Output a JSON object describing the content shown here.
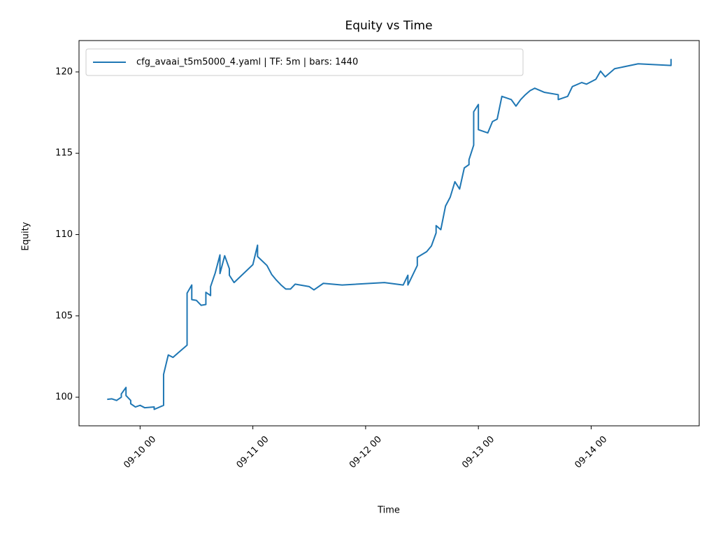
{
  "chart_data": {
    "type": "line",
    "title": "Equity vs Time",
    "xlabel": "Time",
    "ylabel": "Equity",
    "x": [
      "09-09 17",
      "09-09 18",
      "09-09 19",
      "09-09 20",
      "09-09 20",
      "09-09 21",
      "09-09 21",
      "09-09 22",
      "09-09 22",
      "09-09 23",
      "09-10 00",
      "09-10 01",
      "09-10 03",
      "09-10 03",
      "09-10 05",
      "09-10 05",
      "09-10 05",
      "09-10 06",
      "09-10 07",
      "09-10 10",
      "09-10 10",
      "09-10 10",
      "09-10 11",
      "09-10 11",
      "09-10 12",
      "09-10 13",
      "09-10 14",
      "09-10 14",
      "09-10 15",
      "09-10 15",
      "09-10 16",
      "09-10 17",
      "09-10 17",
      "09-10 18",
      "09-10 19",
      "09-10 19",
      "09-10 20",
      "09-11 00",
      "09-11 01",
      "09-11 01",
      "09-11 03",
      "09-11 04",
      "09-11 05",
      "09-11 06",
      "09-11 07",
      "09-11 08",
      "09-11 09",
      "09-11 12",
      "09-11 13",
      "09-11 15",
      "09-11 19",
      "09-12 04",
      "09-12 08",
      "09-12 09",
      "09-12 09",
      "09-12 11",
      "09-12 11",
      "09-12 13",
      "09-12 14",
      "09-12 15",
      "09-12 15",
      "09-12 16",
      "09-12 17",
      "09-12 18",
      "09-12 19",
      "09-12 20",
      "09-12 21",
      "09-12 22",
      "09-12 22",
      "09-12 23",
      "09-12 23",
      "09-13 00",
      "09-13 00",
      "09-13 02",
      "09-13 03",
      "09-13 04",
      "09-13 05",
      "09-13 07",
      "09-13 08",
      "09-13 09",
      "09-13 10",
      "09-13 11",
      "09-13 12",
      "09-13 14",
      "09-13 17",
      "09-13 17",
      "09-13 19",
      "09-13 20",
      "09-13 22",
      "09-13 23",
      "09-14 01",
      "09-14 02",
      "09-14 03",
      "09-14 05",
      "09-14 10",
      "09-14 17",
      "09-14 17"
    ],
    "series": [
      {
        "name": "cfg_avaai_t5m5000_4.yaml | TF: 5m | bars: 1440",
        "color": "#1f77b4",
        "values": [
          99.87,
          99.9,
          99.8,
          100.0,
          100.2,
          100.6,
          100.1,
          99.8,
          99.6,
          99.4,
          99.5,
          99.35,
          99.4,
          99.25,
          99.5,
          100.55,
          101.4,
          102.6,
          102.45,
          103.2,
          105.1,
          106.4,
          106.9,
          106.0,
          105.95,
          105.65,
          105.7,
          106.45,
          106.25,
          106.8,
          107.65,
          108.75,
          107.6,
          108.7,
          107.9,
          107.5,
          107.05,
          108.15,
          109.35,
          108.65,
          108.1,
          107.55,
          107.2,
          106.9,
          106.65,
          106.65,
          106.95,
          106.8,
          106.6,
          107.0,
          106.9,
          107.05,
          106.9,
          107.5,
          106.9,
          108.1,
          108.6,
          108.95,
          109.3,
          110.1,
          110.55,
          110.3,
          111.75,
          112.3,
          113.25,
          112.8,
          114.1,
          114.3,
          114.6,
          115.5,
          117.55,
          118.0,
          116.45,
          116.25,
          116.95,
          117.1,
          118.5,
          118.3,
          117.9,
          118.3,
          118.6,
          118.85,
          119.0,
          118.75,
          118.6,
          118.3,
          118.5,
          119.1,
          119.35,
          119.25,
          119.55,
          120.05,
          119.7,
          120.2,
          120.5,
          120.4,
          120.8
        ]
      }
    ],
    "xlim": [
      "09-09 11",
      "09-14 23"
    ],
    "xticks": [
      "09-10 00",
      "09-11 00",
      "09-12 00",
      "09-13 00",
      "09-14 00"
    ],
    "ylim": [
      98.24,
      121.93
    ],
    "yticks": [
      100,
      105,
      110,
      115,
      120
    ],
    "grid": false,
    "legend": "upper left"
  }
}
